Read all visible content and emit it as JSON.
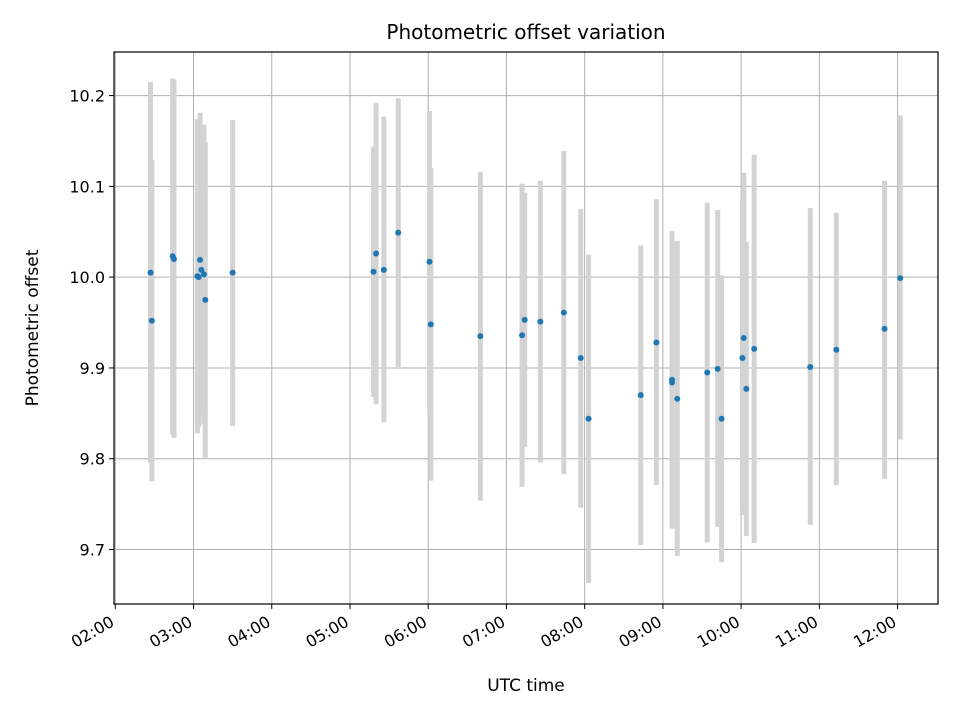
{
  "chart_data": {
    "type": "scatter",
    "title": "Photometric offset variation",
    "xlabel": "UTC time",
    "ylabel": "Photometric offset",
    "x_axis_type": "time",
    "xlim": [
      "01:59",
      "12:31"
    ],
    "ylim": [
      9.64,
      10.248
    ],
    "x_ticks": [
      "02:00",
      "03:00",
      "04:00",
      "05:00",
      "06:00",
      "07:00",
      "08:00",
      "09:00",
      "10:00",
      "11:00",
      "12:00"
    ],
    "y_ticks": [
      9.7,
      9.8,
      9.9,
      10.0,
      10.1,
      10.2
    ],
    "y_tick_labels": [
      "9.7",
      "9.8",
      "9.9",
      "10.0",
      "10.1",
      "10.2"
    ],
    "grid": true,
    "point_color": "#1f77b4",
    "errorbar_color": "#d3d3d3",
    "points": [
      {
        "x": "02:27",
        "y": 10.005,
        "lo": 9.795,
        "hi": 10.215
      },
      {
        "x": "02:28",
        "y": 9.952,
        "lo": 9.775,
        "hi": 10.129
      },
      {
        "x": "02:44",
        "y": 10.023,
        "lo": 9.827,
        "hi": 10.219
      },
      {
        "x": "02:45",
        "y": 10.02,
        "lo": 9.823,
        "hi": 10.217
      },
      {
        "x": "03:03",
        "y": 10.001,
        "lo": 9.828,
        "hi": 10.174
      },
      {
        "x": "03:04",
        "y": 10.0,
        "lo": 9.835,
        "hi": 10.165
      },
      {
        "x": "03:05",
        "y": 10.019,
        "lo": 9.857,
        "hi": 10.181
      },
      {
        "x": "03:06",
        "y": 10.008,
        "lo": 9.849,
        "hi": 10.167
      },
      {
        "x": "03:08",
        "y": 10.003,
        "lo": 9.838,
        "hi": 10.168
      },
      {
        "x": "03:09",
        "y": 9.975,
        "lo": 9.801,
        "hi": 10.149
      },
      {
        "x": "03:30",
        "y": 10.005,
        "lo": 9.836,
        "hi": 10.173
      },
      {
        "x": "05:18",
        "y": 10.006,
        "lo": 9.868,
        "hi": 10.144
      },
      {
        "x": "05:20",
        "y": 10.026,
        "lo": 9.86,
        "hi": 10.192
      },
      {
        "x": "05:26",
        "y": 10.008,
        "lo": 9.84,
        "hi": 10.177
      },
      {
        "x": "05:37",
        "y": 10.049,
        "lo": 9.901,
        "hi": 10.197
      },
      {
        "x": "06:01",
        "y": 10.017,
        "lo": 9.851,
        "hi": 10.183
      },
      {
        "x": "06:02",
        "y": 9.948,
        "lo": 9.776,
        "hi": 10.12
      },
      {
        "x": "06:40",
        "y": 9.935,
        "lo": 9.754,
        "hi": 10.116
      },
      {
        "x": "07:12",
        "y": 9.936,
        "lo": 9.769,
        "hi": 10.103
      },
      {
        "x": "07:14",
        "y": 9.953,
        "lo": 9.813,
        "hi": 10.093
      },
      {
        "x": "07:26",
        "y": 9.951,
        "lo": 9.796,
        "hi": 10.106
      },
      {
        "x": "07:44",
        "y": 9.961,
        "lo": 9.783,
        "hi": 10.139
      },
      {
        "x": "07:57",
        "y": 9.911,
        "lo": 9.746,
        "hi": 10.075
      },
      {
        "x": "08:03",
        "y": 9.844,
        "lo": 9.663,
        "hi": 10.025
      },
      {
        "x": "08:43",
        "y": 9.87,
        "lo": 9.705,
        "hi": 10.035
      },
      {
        "x": "08:55",
        "y": 9.928,
        "lo": 9.771,
        "hi": 10.086
      },
      {
        "x": "09:07",
        "y": 9.887,
        "lo": 9.723,
        "hi": 10.051
      },
      {
        "x": "09:07",
        "y": 9.884,
        "lo": 9.728,
        "hi": 10.04
      },
      {
        "x": "09:11",
        "y": 9.866,
        "lo": 9.693,
        "hi": 10.04
      },
      {
        "x": "09:34",
        "y": 9.895,
        "lo": 9.708,
        "hi": 10.082
      },
      {
        "x": "09:42",
        "y": 9.899,
        "lo": 9.725,
        "hi": 10.074
      },
      {
        "x": "09:45",
        "y": 9.844,
        "lo": 9.686,
        "hi": 10.002
      },
      {
        "x": "10:01",
        "y": 9.911,
        "lo": 9.738,
        "hi": 10.085
      },
      {
        "x": "10:02",
        "y": 9.933,
        "lo": 9.751,
        "hi": 10.115
      },
      {
        "x": "10:04",
        "y": 9.877,
        "lo": 9.715,
        "hi": 10.039
      },
      {
        "x": "10:10",
        "y": 9.921,
        "lo": 9.707,
        "hi": 10.135
      },
      {
        "x": "10:53",
        "y": 9.901,
        "lo": 9.727,
        "hi": 10.076
      },
      {
        "x": "11:13",
        "y": 9.92,
        "lo": 9.771,
        "hi": 10.071
      },
      {
        "x": "11:50",
        "y": 9.943,
        "lo": 9.778,
        "hi": 10.106
      },
      {
        "x": "12:02",
        "y": 9.999,
        "lo": 9.821,
        "hi": 10.178
      }
    ]
  }
}
